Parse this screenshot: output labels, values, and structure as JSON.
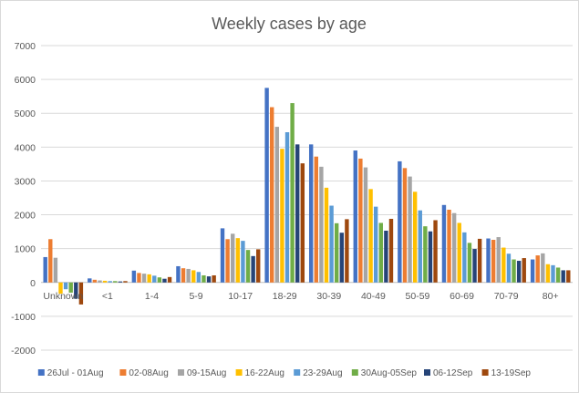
{
  "chart_data": {
    "type": "bar",
    "title": "Weekly cases by age",
    "xlabel": "",
    "ylabel": "",
    "ylim": [
      -2000,
      7000
    ],
    "ytick_step": 1000,
    "grid": true,
    "legend_position": "bottom",
    "categories": [
      "Unknown",
      "<1",
      "1-4",
      "5-9",
      "10-17",
      "18-29",
      "30-39",
      "40-49",
      "50-59",
      "60-69",
      "70-79",
      "80+"
    ],
    "series": [
      {
        "name": "26Jul - 01Aug",
        "color": "#4472C4",
        "values": [
          750,
          120,
          350,
          480,
          1600,
          5750,
          4080,
          3900,
          3580,
          2290,
          1300,
          680
        ]
      },
      {
        "name": "02-08Aug",
        "color": "#ED7D31",
        "values": [
          1280,
          80,
          280,
          420,
          1280,
          5180,
          3720,
          3660,
          3380,
          2150,
          1260,
          800
        ]
      },
      {
        "name": "09-15Aug",
        "color": "#A5A5A5",
        "values": [
          730,
          60,
          260,
          400,
          1440,
          4600,
          3420,
          3400,
          3130,
          2050,
          1340,
          860
        ]
      },
      {
        "name": "16-22Aug",
        "color": "#FFC000",
        "values": [
          -330,
          50,
          240,
          360,
          1310,
          3950,
          2800,
          2760,
          2680,
          1760,
          1030,
          540
        ]
      },
      {
        "name": "23-29Aug",
        "color": "#5B9BD5",
        "values": [
          -200,
          40,
          200,
          310,
          1230,
          4440,
          2270,
          2240,
          2130,
          1480,
          850,
          510
        ]
      },
      {
        "name": "30Aug-05Sep",
        "color": "#70AD47",
        "values": [
          -300,
          40,
          150,
          210,
          960,
          5300,
          1750,
          1760,
          1660,
          1170,
          680,
          440
        ]
      },
      {
        "name": "06-12Sep",
        "color": "#264478",
        "values": [
          -480,
          30,
          110,
          180,
          780,
          4080,
          1470,
          1530,
          1510,
          990,
          640,
          360
        ]
      },
      {
        "name": "13-19Sep",
        "color": "#9E480E",
        "values": [
          -650,
          40,
          160,
          210,
          980,
          3520,
          1870,
          1880,
          1840,
          1290,
          720,
          360
        ]
      }
    ]
  }
}
